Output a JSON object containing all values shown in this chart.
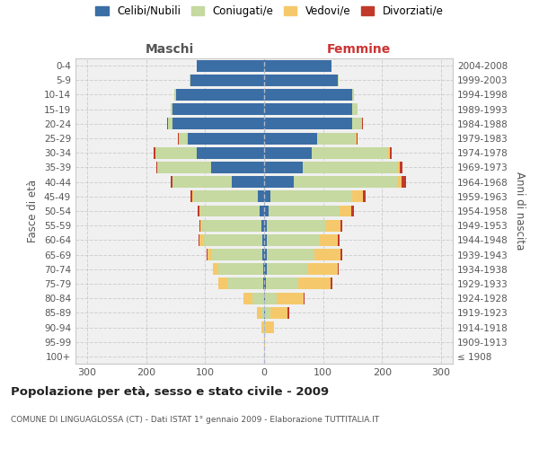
{
  "age_groups": [
    "100+",
    "95-99",
    "90-94",
    "85-89",
    "80-84",
    "75-79",
    "70-74",
    "65-69",
    "60-64",
    "55-59",
    "50-54",
    "45-49",
    "40-44",
    "35-39",
    "30-34",
    "25-29",
    "20-24",
    "15-19",
    "10-14",
    "5-9",
    "0-4"
  ],
  "birth_years": [
    "≤ 1908",
    "1909-1913",
    "1914-1918",
    "1919-1923",
    "1924-1928",
    "1929-1933",
    "1934-1938",
    "1939-1943",
    "1944-1948",
    "1949-1953",
    "1954-1958",
    "1959-1963",
    "1964-1968",
    "1969-1973",
    "1974-1978",
    "1979-1983",
    "1984-1988",
    "1989-1993",
    "1994-1998",
    "1999-2003",
    "2004-2008"
  ],
  "males": {
    "celibe": [
      0,
      0,
      0,
      0,
      0,
      2,
      2,
      3,
      3,
      5,
      8,
      10,
      55,
      90,
      115,
      130,
      155,
      155,
      150,
      125,
      115
    ],
    "coniugato": [
      0,
      0,
      2,
      4,
      20,
      60,
      75,
      85,
      100,
      100,
      100,
      110,
      100,
      90,
      70,
      15,
      8,
      3,
      2,
      1,
      0
    ],
    "vedovo": [
      0,
      0,
      3,
      8,
      15,
      15,
      10,
      8,
      6,
      3,
      2,
      2,
      1,
      1,
      0,
      0,
      0,
      0,
      0,
      0,
      0
    ],
    "divorziato": [
      0,
      0,
      0,
      0,
      0,
      0,
      0,
      2,
      2,
      2,
      3,
      3,
      2,
      2,
      2,
      1,
      1,
      0,
      0,
      0,
      0
    ]
  },
  "females": {
    "nubile": [
      0,
      0,
      0,
      2,
      2,
      3,
      5,
      5,
      5,
      5,
      8,
      10,
      50,
      65,
      80,
      90,
      150,
      150,
      150,
      125,
      115
    ],
    "coniugata": [
      0,
      0,
      2,
      8,
      20,
      55,
      70,
      80,
      90,
      100,
      120,
      140,
      175,
      160,
      130,
      65,
      15,
      8,
      3,
      1,
      0
    ],
    "vedova": [
      0,
      2,
      15,
      30,
      45,
      55,
      50,
      45,
      30,
      25,
      20,
      18,
      8,
      5,
      3,
      2,
      1,
      0,
      0,
      0,
      0
    ],
    "divorziata": [
      0,
      0,
      0,
      2,
      2,
      3,
      2,
      2,
      3,
      3,
      4,
      4,
      8,
      5,
      3,
      2,
      1,
      0,
      0,
      0,
      0
    ]
  },
  "colors": {
    "celibe": "#3b6ea5",
    "coniugato": "#c5d9a0",
    "vedovo": "#f5c96b",
    "divorziato": "#c0392b"
  },
  "xlim": 320,
  "title": "Popolazione per età, sesso e stato civile - 2009",
  "subtitle": "COMUNE DI LINGUAGLOSSA (CT) - Dati ISTAT 1° gennaio 2009 - Elaborazione TUTTITALIA.IT",
  "xlabel_left": "Maschi",
  "xlabel_right": "Femmine",
  "ylabel_left": "Fasce di età",
  "ylabel_right": "Anni di nascita",
  "legend_labels": [
    "Celibi/Nubili",
    "Coniugati/e",
    "Vedovi/e",
    "Divorziati/e"
  ],
  "bg_color": "#f0f0f0",
  "grid_color": "#cccccc"
}
